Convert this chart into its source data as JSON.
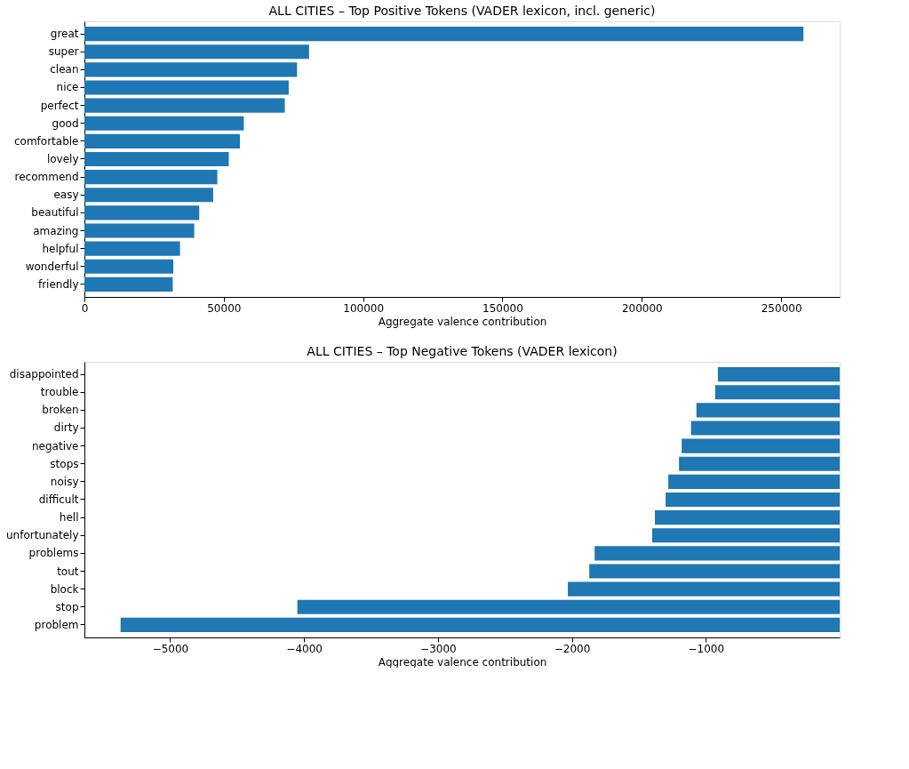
{
  "chart_data": [
    {
      "type": "bar",
      "orientation": "horizontal",
      "title": "ALL CITIES – Top Positive Tokens (VADER lexicon, incl. generic)",
      "xlabel": "Aggregate valence contribution",
      "categories": [
        "great",
        "super",
        "clean",
        "nice",
        "perfect",
        "good",
        "comfortable",
        "lovely",
        "recommend",
        "easy",
        "beautiful",
        "amazing",
        "helpful",
        "wonderful",
        "friendly"
      ],
      "values": [
        258000,
        80600,
        76300,
        73300,
        71900,
        57200,
        55800,
        51800,
        47700,
        46200,
        41200,
        39400,
        34300,
        31900,
        31700
      ],
      "color": "#1f77b4",
      "xlim": [
        0,
        271000
      ],
      "xticks": [
        0,
        50000,
        100000,
        150000,
        200000,
        250000
      ],
      "grid": false
    },
    {
      "type": "bar",
      "orientation": "horizontal",
      "title": "ALL CITIES – Top Negative Tokens (VADER lexicon)",
      "xlabel": "Aggregate valence contribution",
      "categories": [
        "disappointed",
        "trouble",
        "broken",
        "dirty",
        "negative",
        "stops",
        "noisy",
        "difficult",
        "hell",
        "unfortunately",
        "problems",
        "tout",
        "block",
        "stop",
        "problem"
      ],
      "values": [
        -910,
        -930,
        -1070,
        -1110,
        -1180,
        -1200,
        -1280,
        -1300,
        -1380,
        -1400,
        -1830,
        -1870,
        -2030,
        -4050,
        -5370
      ],
      "color": "#1f77b4",
      "xlim": [
        -5640,
        0
      ],
      "xticks": [
        {
          "value": -5000,
          "label": "−5000"
        },
        {
          "value": -4000,
          "label": "−4000"
        },
        {
          "value": -3000,
          "label": "−3000"
        },
        {
          "value": -2000,
          "label": "−2000"
        },
        {
          "value": -1000,
          "label": "−1000"
        }
      ],
      "grid": false
    }
  ]
}
